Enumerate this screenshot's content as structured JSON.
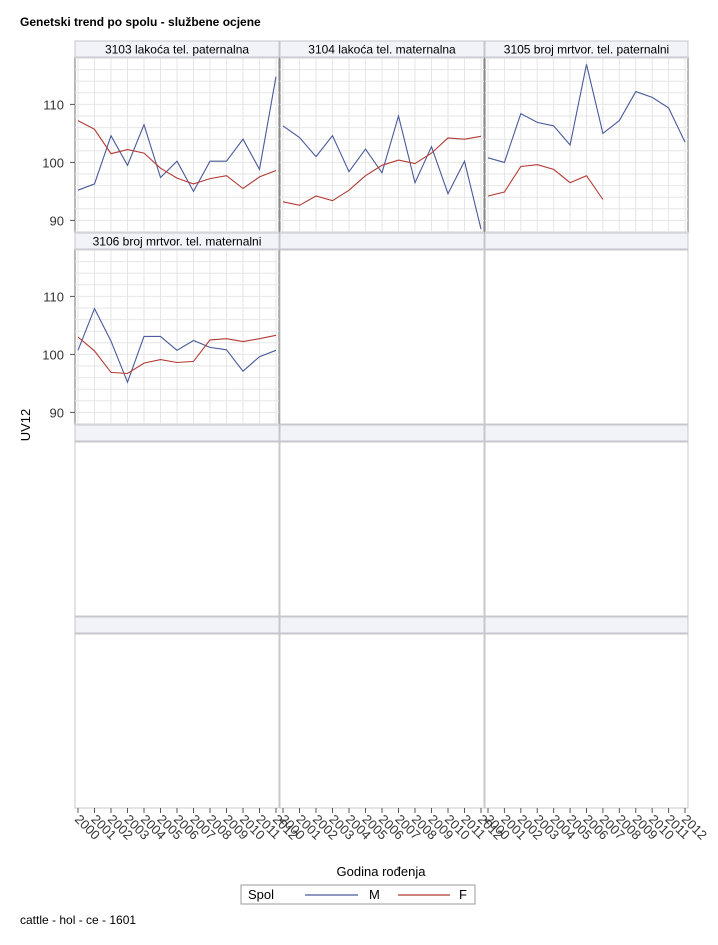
{
  "title": "Genetski trend po spolu - službene ocjene",
  "footnote": "cattle - hol - ce - 1601",
  "chart_data": {
    "type": "line",
    "layout": "panel-grid 3 columns",
    "xlabel": "Godina rođenja",
    "ylabel": "UV12",
    "ylim": [
      88,
      118
    ],
    "yticks": [
      90,
      100,
      110
    ],
    "x": [
      "2000",
      "2001",
      "2002",
      "2003",
      "2004",
      "2005",
      "2006",
      "2007",
      "2008",
      "2009",
      "2010",
      "2011",
      "2012"
    ],
    "legend": {
      "title": "Spol",
      "entries": [
        {
          "name": "M",
          "color": "#4a5a9a"
        },
        {
          "name": "F",
          "color": "#b23a34"
        }
      ]
    },
    "panels": [
      {
        "label": "3103 lakoća tel. paternalna",
        "series": [
          {
            "name": "M",
            "values": [
              95.2,
              96.3,
              104.6,
              99.5,
              106.5,
              97.4,
              100.2,
              95.0,
              100.2,
              100.2,
              104.0,
              98.8,
              114.8
            ]
          },
          {
            "name": "F",
            "values": [
              107.2,
              105.7,
              101.5,
              102.2,
              101.6,
              99.0,
              97.3,
              96.3,
              97.2,
              97.7,
              95.5,
              97.5,
              98.6
            ]
          }
        ]
      },
      {
        "label": "3104 lakoća tel. maternalna",
        "series": [
          {
            "name": "M",
            "values": [
              106.3,
              104.3,
              101.0,
              104.6,
              98.4,
              102.3,
              98.2,
              108.0,
              96.5,
              102.7,
              94.6,
              100.2,
              88.5
            ]
          },
          {
            "name": "F",
            "values": [
              93.2,
              92.6,
              94.2,
              93.4,
              95.2,
              97.7,
              99.5,
              100.4,
              99.8,
              101.6,
              104.2,
              104.0,
              104.5
            ]
          }
        ]
      },
      {
        "label": "3105 broj mrtvor. tel. paternalni",
        "series": [
          {
            "name": "M",
            "values": [
              100.8,
              100.0,
              108.4,
              106.9,
              106.3,
              103.0,
              116.9,
              105.0,
              107.2,
              112.2,
              111.2,
              109.4,
              103.5
            ]
          },
          {
            "name": "F",
            "values": [
              94.2,
              94.9,
              99.3,
              99.6,
              98.8,
              96.5,
              97.7,
              93.6,
              null,
              null,
              null,
              null,
              null
            ]
          }
        ]
      },
      {
        "label": "3106 broj mrtvor. tel. maternalni",
        "series": [
          {
            "name": "M",
            "values": [
              100.7,
              107.9,
              102.3,
              95.2,
              103.1,
              103.1,
              100.7,
              102.4,
              101.2,
              100.8,
              97.1,
              99.6,
              100.7
            ]
          },
          {
            "name": "F",
            "values": [
              103.0,
              100.6,
              96.9,
              96.7,
              98.5,
              99.1,
              98.6,
              98.8,
              102.5,
              102.7,
              102.2,
              102.7,
              103.3
            ]
          }
        ]
      }
    ]
  }
}
